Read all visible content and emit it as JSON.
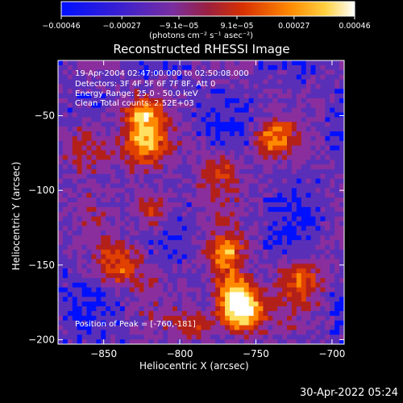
{
  "chart_data": {
    "type": "heatmap",
    "title": "Reconstructed RHESSI Image",
    "xlabel": "Heliocentric X (arcsec)",
    "ylabel": "Heliocentric Y (arcsec)",
    "xlim": [
      -880,
      -692
    ],
    "ylim": [
      -203,
      -13
    ],
    "x_ticks": [
      -850,
      -800,
      -750,
      -700
    ],
    "y_ticks": [
      -50,
      -100,
      -150,
      -200
    ],
    "colorbar": {
      "range": [
        -0.00046,
        0.00046
      ],
      "ticks": [
        {
          "value": -0.00046,
          "label": "-0.00046"
        },
        {
          "value": -0.00027,
          "label": "-0.00027"
        },
        {
          "value": -9.1e-05,
          "label": "-9.1e-05"
        },
        {
          "value": 9.1e-05,
          "label": "9.1e-05"
        },
        {
          "value": 0.00027,
          "label": "0.00027"
        },
        {
          "value": 0.00046,
          "label": "0.00046"
        }
      ],
      "unit_label": "(photons cm⁻² s⁻¹ asec⁻²)"
    },
    "peak": {
      "x": -760,
      "y": -181
    },
    "colors": [
      "#0010ff",
      "#5a2fb8",
      "#8a2e9e",
      "#b3201a",
      "#e04000",
      "#ff8a00",
      "#ffe060",
      "#ffffff"
    ]
  },
  "info": {
    "time": "19-Apr-2004 02:47:00.000 to 02:50:08.000",
    "detectors": "Detectors: 3F 4F 5F 6F 7F 8F, Att 0",
    "energy": "Energy Range: 25.0 - 50.0 keV",
    "clean": "Clean    Total counts: 2.52E+03",
    "peak": "Position of Peak = [-760,-181]"
  },
  "footer_date": "30-Apr-2022 05:24"
}
